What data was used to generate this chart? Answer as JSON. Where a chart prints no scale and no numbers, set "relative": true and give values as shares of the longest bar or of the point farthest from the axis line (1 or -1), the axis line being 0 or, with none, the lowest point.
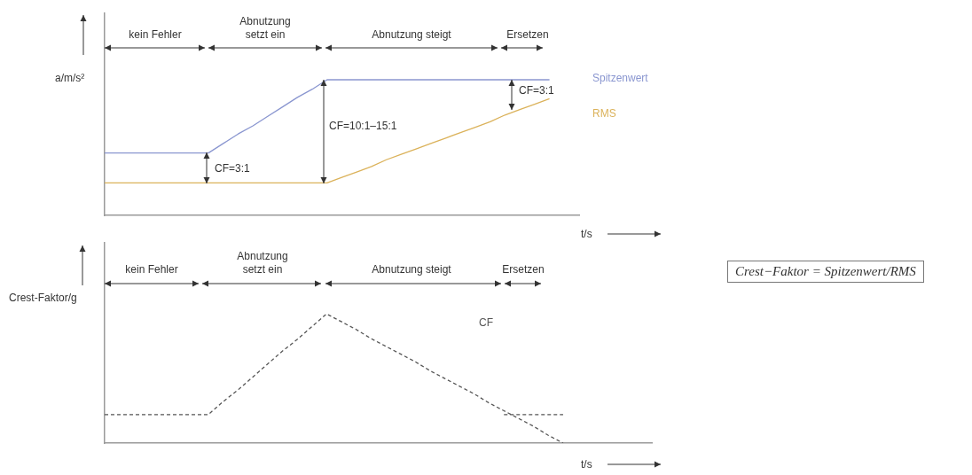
{
  "chart_data": [
    {
      "type": "line",
      "relative": true,
      "ylabel": "a/m/s²",
      "xlabel": "t/s",
      "categories": [
        null,
        null,
        null,
        null,
        null,
        null,
        null,
        null,
        null,
        null,
        null,
        null,
        null,
        null,
        null,
        null,
        null,
        null,
        null,
        null,
        null,
        null,
        null,
        null,
        null,
        null,
        null,
        null,
        null,
        null,
        null,
        null,
        null
      ],
      "series": [
        {
          "name": "Spitzenwert",
          "color": "#8a96d0",
          "values": [
            0.46,
            0.46,
            0.46,
            0.46,
            0.46,
            0.46,
            0.46,
            0.46,
            0.53,
            0.6,
            0.66,
            0.73,
            0.8,
            0.87,
            0.93,
            1,
            1,
            1,
            1,
            1,
            1,
            1,
            1,
            1,
            1,
            1,
            1,
            1,
            1,
            1,
            1,
            null,
            null
          ]
        },
        {
          "name": "RMS",
          "color": "#dbb25a",
          "values": [
            0.24,
            0.24,
            0.24,
            0.24,
            0.24,
            0.24,
            0.24,
            0.24,
            0.24,
            0.24,
            0.24,
            0.24,
            0.24,
            0.24,
            0.24,
            0.24,
            0.28,
            0.32,
            0.36,
            0.41,
            0.45,
            0.49,
            0.53,
            0.57,
            0.61,
            0.65,
            0.69,
            0.74,
            0.78,
            0.82,
            0.86,
            null,
            null
          ]
        }
      ],
      "annotations": [
        "kein Fehler",
        "Abnutzung\nsetzt ein",
        "Abnutzung steigt",
        "Ersetzen",
        "CF=3:1",
        "CF=10:1–15:1",
        "CF=3:1"
      ]
    },
    {
      "type": "line",
      "relative": true,
      "ylabel": "Crest-Faktor/g",
      "xlabel": "t/s",
      "categories": [
        null,
        null,
        null,
        null,
        null,
        null,
        null,
        null,
        null,
        null,
        null,
        null,
        null,
        null,
        null,
        null,
        null,
        null,
        null,
        null,
        null,
        null,
        null,
        null,
        null,
        null,
        null,
        null,
        null,
        null,
        null,
        null,
        null,
        null,
        null,
        null,
        null,
        null
      ],
      "series": [
        {
          "name": "CF",
          "color": "#555555",
          "line_style": "dashed",
          "values": [
            0.22,
            0.22,
            0.22,
            0.22,
            0.22,
            0.22,
            0.22,
            0.22,
            0.32,
            0.41,
            0.51,
            0.61,
            0.71,
            0.8,
            0.9,
            1,
            0.94,
            0.88,
            0.81,
            0.75,
            0.69,
            0.63,
            0.56,
            0.5,
            0.44,
            0.38,
            0.31,
            0.25,
            0.19,
            0.13,
            0.06,
            0,
            null,
            null,
            null,
            null,
            null,
            null
          ]
        },
        {
          "color": "#555555",
          "line_style": "dashed",
          "values": [
            null,
            null,
            null,
            null,
            null,
            null,
            null,
            null,
            null,
            null,
            null,
            null,
            null,
            null,
            null,
            null,
            null,
            null,
            null,
            null,
            null,
            null,
            null,
            null,
            null,
            null,
            null,
            0.22,
            0.22,
            0.22,
            0.22,
            0.22,
            null,
            null,
            null,
            null,
            null,
            null
          ]
        }
      ],
      "annotations": [
        "kein Fehler",
        "Abnutzung\nsetzt ein",
        "Abnutzung steigt",
        "Ersetzen",
        "Crest−Faktor = Spitzenwert/RMS"
      ]
    }
  ]
}
